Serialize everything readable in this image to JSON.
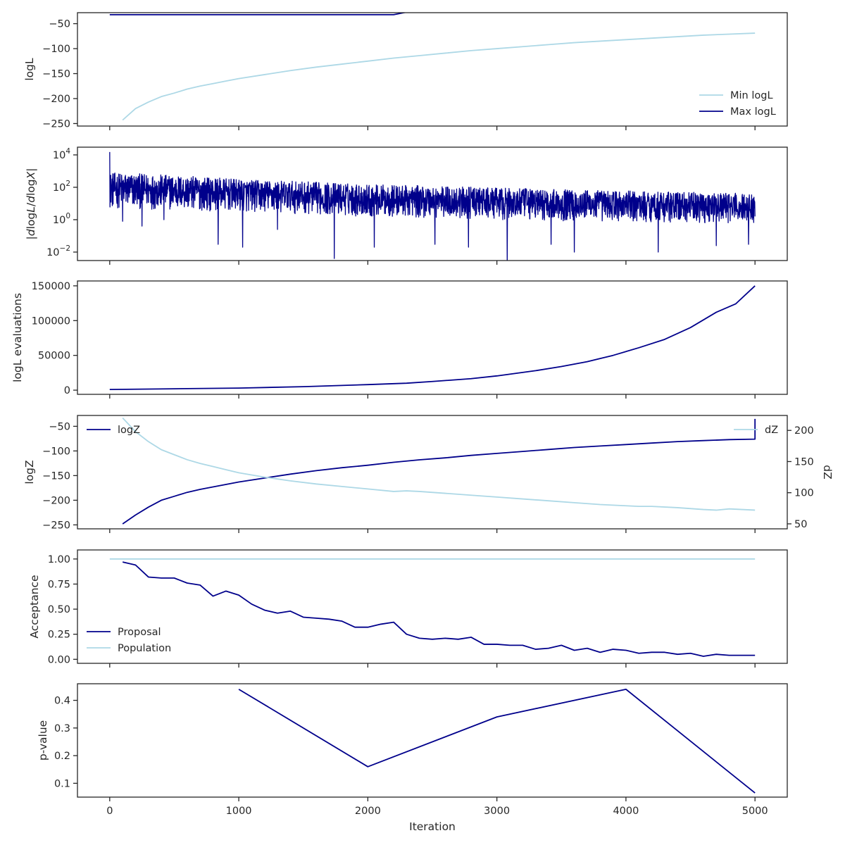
{
  "colors": {
    "dark": "#00008b",
    "light": "#add8e6",
    "axis": "#262626"
  },
  "shared_x": {
    "label": "Iteration",
    "ticks": [
      0,
      1000,
      2000,
      3000,
      4000,
      5000
    ],
    "tick_labels": [
      "0",
      "1000",
      "2000",
      "3000",
      "4000",
      "5000"
    ],
    "range": [
      -250,
      5250
    ]
  },
  "chart_data": [
    {
      "id": "logl",
      "type": "line",
      "ylabel": "logL",
      "ylim": [
        -255,
        -28
      ],
      "yticks": [
        -50,
        -100,
        -150,
        -200,
        -250
      ],
      "ytick_labels": [
        "−50",
        "−100",
        "−150",
        "−200",
        "−250"
      ],
      "legend_placement": "lower-right",
      "series": [
        {
          "name": "Min logL",
          "color": "#add8e6",
          "x": [
            100,
            200,
            300,
            400,
            500,
            600,
            700,
            800,
            900,
            1000,
            1200,
            1400,
            1600,
            1800,
            2000,
            2200,
            2400,
            2600,
            2800,
            3000,
            3200,
            3400,
            3600,
            3800,
            4000,
            4200,
            4400,
            4600,
            4800,
            5000
          ],
          "y": [
            -243,
            -220,
            -207,
            -196,
            -189,
            -181,
            -175,
            -170,
            -165,
            -160,
            -152,
            -144,
            -137,
            -131,
            -125,
            -119,
            -114,
            -109,
            -104,
            -100,
            -96,
            -92,
            -88,
            -85,
            -82,
            -79,
            -76,
            -73,
            -71,
            -69
          ]
        },
        {
          "name": "Max logL",
          "color": "#00008b",
          "x": [
            0,
            2200,
            2300,
            4100,
            4200,
            4700,
            4800,
            5000
          ],
          "y": [
            -32,
            -32,
            -27,
            -27,
            -25,
            -25,
            -22,
            -22
          ]
        }
      ]
    },
    {
      "id": "dlogl",
      "type": "line",
      "ylabel": "|dlogL/dlogX|",
      "scale": "log",
      "ylim": [
        0.003,
        30000
      ],
      "yticks": [
        10000,
        100,
        1,
        0.01
      ],
      "ytick_labels": [
        "10^4",
        "10^2",
        "10^0",
        "10^-2"
      ],
      "noise_band": {
        "x": [
          0,
          1000,
          2000,
          3000,
          4000,
          5000
        ],
        "low": [
          5,
          3,
          1.5,
          1.0,
          0.7,
          0.6
        ],
        "high": [
          800,
          300,
          150,
          90,
          60,
          40
        ]
      },
      "spikes": [
        {
          "x": 0,
          "y": 15000
        },
        {
          "x": 100,
          "y": 0.8
        },
        {
          "x": 250,
          "y": 0.4
        },
        {
          "x": 420,
          "y": 1.0
        },
        {
          "x": 840,
          "y": 0.03
        },
        {
          "x": 1030,
          "y": 0.02
        },
        {
          "x": 1300,
          "y": 0.25
        },
        {
          "x": 1740,
          "y": 0.004
        },
        {
          "x": 2050,
          "y": 0.02
        },
        {
          "x": 2520,
          "y": 0.03
        },
        {
          "x": 2780,
          "y": 0.02
        },
        {
          "x": 3080,
          "y": 0.002
        },
        {
          "x": 3420,
          "y": 0.03
        },
        {
          "x": 3600,
          "y": 0.01
        },
        {
          "x": 4250,
          "y": 0.01
        },
        {
          "x": 4700,
          "y": 0.025
        },
        {
          "x": 4950,
          "y": 0.03
        }
      ],
      "series": [
        {
          "color": "#00008b"
        }
      ]
    },
    {
      "id": "evals",
      "type": "line",
      "ylabel": "logL evaluations",
      "ylim": [
        -6000,
        157000
      ],
      "yticks": [
        150000,
        100000,
        50000,
        0
      ],
      "ytick_labels": [
        "150000",
        "100000",
        "50000",
        "0"
      ],
      "series": [
        {
          "color": "#00008b",
          "x": [
            0,
            500,
            1000,
            1500,
            2000,
            2300,
            2500,
            2800,
            3000,
            3300,
            3500,
            3700,
            3900,
            4100,
            4300,
            4500,
            4700,
            4850,
            5000
          ],
          "y": [
            1000,
            2000,
            3000,
            5000,
            8000,
            10000,
            12500,
            16500,
            20500,
            28000,
            34000,
            41000,
            50000,
            61000,
            73000,
            90000,
            112000,
            124000,
            150000
          ]
        }
      ]
    },
    {
      "id": "logz",
      "type": "line",
      "ylabel": "logZ",
      "ylim": [
        -258,
        -28
      ],
      "yticks": [
        -50,
        -100,
        -150,
        -200,
        -250
      ],
      "ytick_labels": [
        "−50",
        "−100",
        "−150",
        "−200",
        "−250"
      ],
      "y2label": "dZ",
      "y2lim": [
        42,
        224
      ],
      "y2ticks": [
        200,
        150,
        100,
        50
      ],
      "y2tick_labels": [
        "200",
        "150",
        "100",
        "50"
      ],
      "legend_placement": "top-left / top-right",
      "series": [
        {
          "name": "logZ",
          "color": "#00008b",
          "axis": "left",
          "x": [
            100,
            200,
            300,
            400,
            500,
            600,
            700,
            800,
            900,
            1000,
            1200,
            1400,
            1600,
            1800,
            2000,
            2200,
            2400,
            2600,
            2800,
            3000,
            3200,
            3400,
            3600,
            3800,
            4000,
            4200,
            4400,
            4600,
            4800,
            5000,
            5000
          ],
          "y": [
            -248,
            -230,
            -214,
            -200,
            -192,
            -184,
            -178,
            -173,
            -168,
            -163,
            -155,
            -147,
            -140,
            -134,
            -129,
            -123,
            -118,
            -114,
            -109,
            -105,
            -101,
            -97,
            -93,
            -90,
            -87,
            -84,
            -81,
            -79,
            -77,
            -76,
            -35
          ]
        },
        {
          "name": "dZ",
          "color": "#add8e6",
          "axis": "right",
          "x": [
            100,
            200,
            300,
            400,
            500,
            600,
            700,
            800,
            900,
            1000,
            1200,
            1400,
            1600,
            1800,
            2000,
            2200,
            2300,
            2400,
            2600,
            2800,
            3000,
            3200,
            3400,
            3600,
            3800,
            4000,
            4100,
            4200,
            4400,
            4600,
            4700,
            4800,
            4900,
            5000
          ],
          "y": [
            220,
            198,
            182,
            169,
            161,
            153,
            147,
            142,
            137,
            132,
            125,
            119,
            114,
            110,
            106,
            102,
            103,
            102,
            99,
            96,
            93,
            90,
            87,
            84,
            81,
            79,
            78,
            78,
            76,
            73,
            72,
            74,
            73,
            72
          ]
        }
      ]
    },
    {
      "id": "acceptance",
      "type": "line",
      "ylabel": "Acceptance",
      "ylim": [
        -0.04,
        1.09
      ],
      "yticks": [
        1.0,
        0.75,
        0.5,
        0.25,
        0.0
      ],
      "ytick_labels": [
        "1.00",
        "0.75",
        "0.50",
        "0.25",
        "0.00"
      ],
      "legend_placement": "lower-left",
      "series": [
        {
          "name": "Proposal",
          "color": "#00008b",
          "x": [
            100,
            200,
            300,
            400,
            500,
            600,
            700,
            800,
            900,
            1000,
            1100,
            1200,
            1300,
            1400,
            1500,
            1600,
            1700,
            1800,
            1900,
            2000,
            2100,
            2200,
            2300,
            2400,
            2500,
            2600,
            2700,
            2800,
            2900,
            3000,
            3100,
            3200,
            3300,
            3400,
            3500,
            3600,
            3700,
            3800,
            3900,
            4000,
            4100,
            4200,
            4300,
            4400,
            4500,
            4600,
            4700,
            4800,
            4900,
            5000
          ],
          "y": [
            0.97,
            0.94,
            0.82,
            0.81,
            0.81,
            0.76,
            0.74,
            0.63,
            0.68,
            0.64,
            0.55,
            0.49,
            0.46,
            0.48,
            0.42,
            0.41,
            0.4,
            0.38,
            0.32,
            0.32,
            0.35,
            0.37,
            0.25,
            0.21,
            0.2,
            0.21,
            0.2,
            0.22,
            0.15,
            0.15,
            0.14,
            0.14,
            0.1,
            0.11,
            0.14,
            0.09,
            0.11,
            0.07,
            0.1,
            0.09,
            0.06,
            0.07,
            0.07,
            0.05,
            0.06,
            0.03,
            0.05,
            0.04,
            0.04,
            0.04
          ]
        },
        {
          "name": "Population",
          "color": "#add8e6",
          "x": [
            0,
            5000
          ],
          "y": [
            1.0,
            1.0
          ]
        }
      ]
    },
    {
      "id": "pvalue",
      "type": "line",
      "ylabel": "p-value",
      "ylim": [
        0.05,
        0.46
      ],
      "yticks": [
        0.4,
        0.3,
        0.2,
        0.1
      ],
      "ytick_labels": [
        "0.4",
        "0.3",
        "0.2",
        "0.1"
      ],
      "series": [
        {
          "color": "#00008b",
          "x": [
            1000,
            2000,
            3000,
            4000,
            5000
          ],
          "y": [
            0.44,
            0.16,
            0.34,
            0.44,
            0.065
          ]
        }
      ]
    }
  ]
}
